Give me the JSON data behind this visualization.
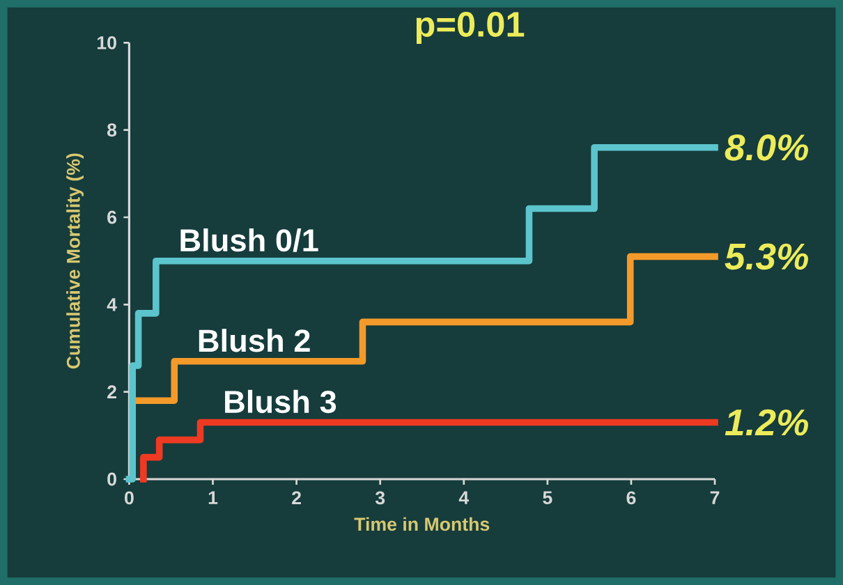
{
  "chart_data": {
    "type": "step",
    "title": "p=0.01",
    "xlabel": "Time in Months",
    "ylabel": "Cumulative Mortality (%)",
    "xlim": [
      0,
      7
    ],
    "ylim": [
      0,
      10
    ],
    "xticks": [
      0,
      1,
      2,
      3,
      4,
      5,
      6,
      7
    ],
    "yticks": [
      0,
      2,
      4,
      6,
      8,
      10
    ],
    "grid": false,
    "legend": false,
    "marker": "none",
    "line_style": "solid",
    "series": [
      {
        "name": "Blush 0/1",
        "color": "#5cc4cc",
        "x": [
          0,
          0.04,
          0.11,
          0.32,
          4.78,
          5.56,
          7
        ],
        "values": [
          0,
          2.6,
          3.8,
          5.0,
          6.2,
          7.6,
          7.6
        ]
      },
      {
        "name": "Blush 2",
        "color": "#f49a2a",
        "x": [
          0.12,
          0.54,
          2.79,
          5.99,
          7
        ],
        "values": [
          1.8,
          2.7,
          3.6,
          5.1,
          5.1
        ]
      },
      {
        "name": "Blush 3",
        "color": "#ee3a22",
        "x": [
          0.17,
          0.17,
          0.36,
          0.85,
          7
        ],
        "values": [
          0,
          0.5,
          0.9,
          1.3,
          1.3
        ]
      }
    ],
    "annotations": [
      "8.0%",
      "5.3%",
      "1.2%"
    ]
  }
}
